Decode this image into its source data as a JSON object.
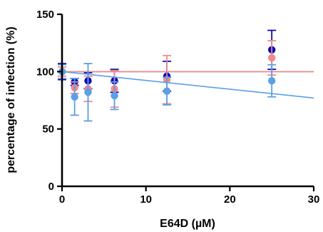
{
  "chart_data": {
    "type": "scatter",
    "title": "",
    "xlabel": "E64D (µM)",
    "ylabel": "percentage of infection (%)",
    "xlim": [
      0,
      30
    ],
    "ylim": [
      0,
      150
    ],
    "xticks": [
      "0",
      "10",
      "20",
      "30"
    ],
    "yticks": [
      "0",
      "50",
      "100",
      "150"
    ],
    "grid": false,
    "legend": "none",
    "series": [
      {
        "color": "#0a0ab4",
        "x": [
          0,
          1.5,
          3.1,
          6.25,
          12.5,
          25
        ],
        "y": [
          100,
          91,
          92,
          92,
          96,
          119
        ],
        "err": [
          7,
          3,
          7,
          10,
          13,
          17
        ],
        "fit": [
          [
            0,
            100
          ],
          [
            30,
            100
          ]
        ]
      },
      {
        "color": "#f08a8a",
        "x": [
          0,
          1.5,
          3.1,
          6.25,
          12.5,
          25
        ],
        "y": [
          100,
          86,
          85,
          85,
          93,
          112
        ],
        "err": [
          4,
          5,
          11,
          16,
          21,
          15
        ],
        "fit": [
          [
            0,
            100
          ],
          [
            30,
            100
          ]
        ]
      },
      {
        "color": "#5aa0e6",
        "x": [
          0,
          1.5,
          3.1,
          6.25,
          12.5,
          25
        ],
        "y": [
          100,
          78,
          82,
          79,
          83,
          92
        ],
        "err": [
          6,
          16,
          25,
          12,
          12,
          14
        ],
        "fit": [
          [
            0,
            100
          ],
          [
            30,
            77
          ]
        ]
      }
    ]
  }
}
